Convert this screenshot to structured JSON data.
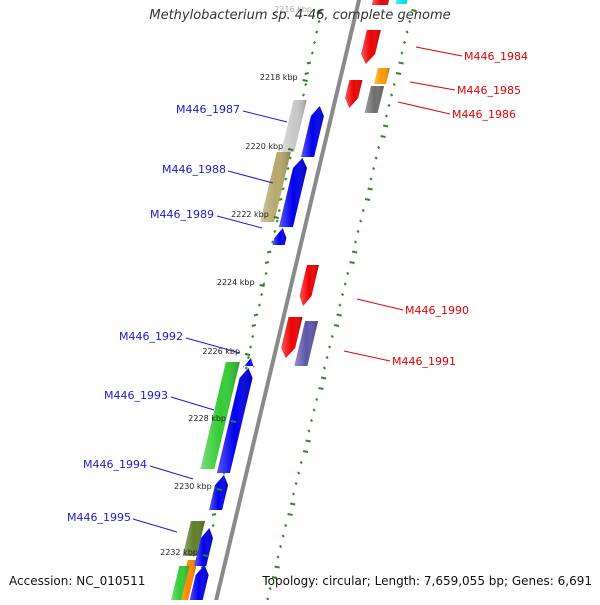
{
  "title": "Methylobacterium sp. 4-46, complete genome",
  "footer": {
    "accession": "Accession: NC_010511",
    "topology": "Topology: circular; Length: 7,659,055 bp; Genes: 6,691"
  },
  "colors": {
    "backbone": "#8a8a8a",
    "tick_inner": "#2e8b22",
    "label_forward": "#1a1acc",
    "label_reverse": "#e00000"
  },
  "kbp_ticks": [
    "2216 kbp",
    "2218 kbp",
    "2220 kbp",
    "2222 kbp",
    "2224 kbp",
    "2226 kbp",
    "2228 kbp",
    "2230 kbp",
    "2232 kbp"
  ],
  "genes": [
    {
      "label": "",
      "strand": "reverse",
      "color": "#ee0000"
    },
    {
      "label": "",
      "strand": "reverse",
      "color": "#00e5e5"
    },
    {
      "label": "M446_1984",
      "strand": "reverse",
      "color": "#ee0000"
    },
    {
      "label": "M446_1985",
      "strand": "reverse",
      "color": "#ff9900"
    },
    {
      "label": "M446_1986",
      "strand": "reverse",
      "color": "#6e6e6e"
    },
    {
      "label": "",
      "strand": "reverse",
      "color": "#ee0000"
    },
    {
      "label": "M446_1987",
      "strand": "forward",
      "color": "#0000ee"
    },
    {
      "label": "M446_1988",
      "strand": "forward",
      "color": "#0000ee"
    },
    {
      "label": "M446_1989",
      "strand": "forward",
      "color": "#0000ee"
    },
    {
      "label": "",
      "strand": "feature",
      "color": "#c8c8c8"
    },
    {
      "label": "",
      "strand": "feature",
      "color": "#b5a96b"
    },
    {
      "label": "M446_1990",
      "strand": "reverse",
      "color": "#ee0000"
    },
    {
      "label": "M446_1991",
      "strand": "reverse",
      "color": "#ee0000"
    },
    {
      "label": "",
      "strand": "feature",
      "color": "#5d55a8"
    },
    {
      "label": "M446_1992",
      "strand": "forward",
      "color": "#0000ee"
    },
    {
      "label": "M446_1993",
      "strand": "forward",
      "color": "#0000ee"
    },
    {
      "label": "",
      "strand": "feature",
      "color": "#33cc33"
    },
    {
      "label": "M446_1994",
      "strand": "forward",
      "color": "#0000ee"
    },
    {
      "label": "M446_1995",
      "strand": "forward",
      "color": "#0000ee"
    },
    {
      "label": "",
      "strand": "feature",
      "color": "#5f7f2a"
    },
    {
      "label": "",
      "strand": "forward",
      "color": "#0000ee"
    },
    {
      "label": "",
      "strand": "feature",
      "color": "#ff8800"
    },
    {
      "label": "",
      "strand": "feature",
      "color": "#33cc33"
    }
  ]
}
